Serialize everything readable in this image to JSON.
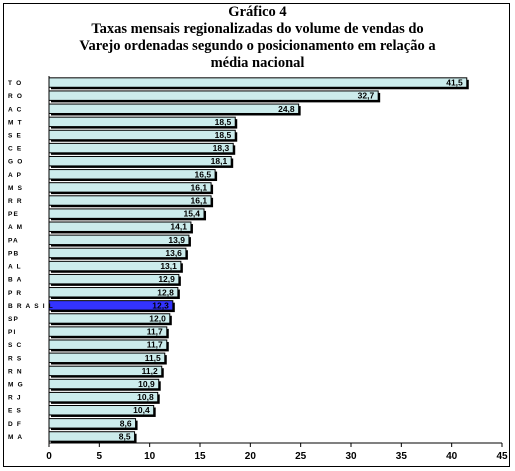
{
  "chart_data": {
    "type": "bar",
    "orientation": "horizontal",
    "title_lines": [
      "Gráfico 4",
      "Taxas mensais regionalizadas do volume de vendas do",
      "Varejo ordenadas segundo o posicionamento em relação a",
      "média nacional"
    ],
    "categories": [
      "T O",
      "R O",
      "A C",
      "M T",
      "S E",
      "C E",
      "G O",
      "A P",
      "M S",
      "R R",
      "PE",
      "A M",
      "PA",
      "PB",
      "A L",
      "B A",
      "P R",
      "B R A S I L",
      "SP",
      "PI",
      "S C",
      "R S",
      "R N",
      "M G",
      "R J",
      "E S",
      "D F",
      "M A"
    ],
    "values": [
      41.5,
      32.7,
      24.8,
      18.5,
      18.5,
      18.3,
      18.1,
      16.5,
      16.1,
      16.1,
      15.4,
      14.1,
      13.9,
      13.6,
      13.1,
      12.9,
      12.8,
      12.3,
      12.0,
      11.7,
      11.7,
      11.5,
      11.2,
      10.9,
      10.8,
      10.4,
      8.6,
      8.5
    ],
    "value_labels": [
      "41,5",
      "32,7",
      "24,8",
      "18,5",
      "18,5",
      "18,3",
      "18,1",
      "16,5",
      "16,1",
      "16,1",
      "15,4",
      "14,1",
      "13,9",
      "13,6",
      "13,1",
      "12,9",
      "12,8",
      "12,3",
      "12,0",
      "11,7",
      "11,7",
      "11,5",
      "11,2",
      "10,9",
      "10,8",
      "10,4",
      "8,6",
      "8,5"
    ],
    "highlight_category": "B R A S I L",
    "xlim": [
      0,
      45
    ],
    "xticks": [
      0,
      5,
      10,
      15,
      20,
      25,
      30,
      35,
      40,
      45
    ],
    "grid": false,
    "colors": {
      "bar": "#ccecec",
      "highlight": "#3333ff",
      "bar_border": "#000000"
    }
  }
}
